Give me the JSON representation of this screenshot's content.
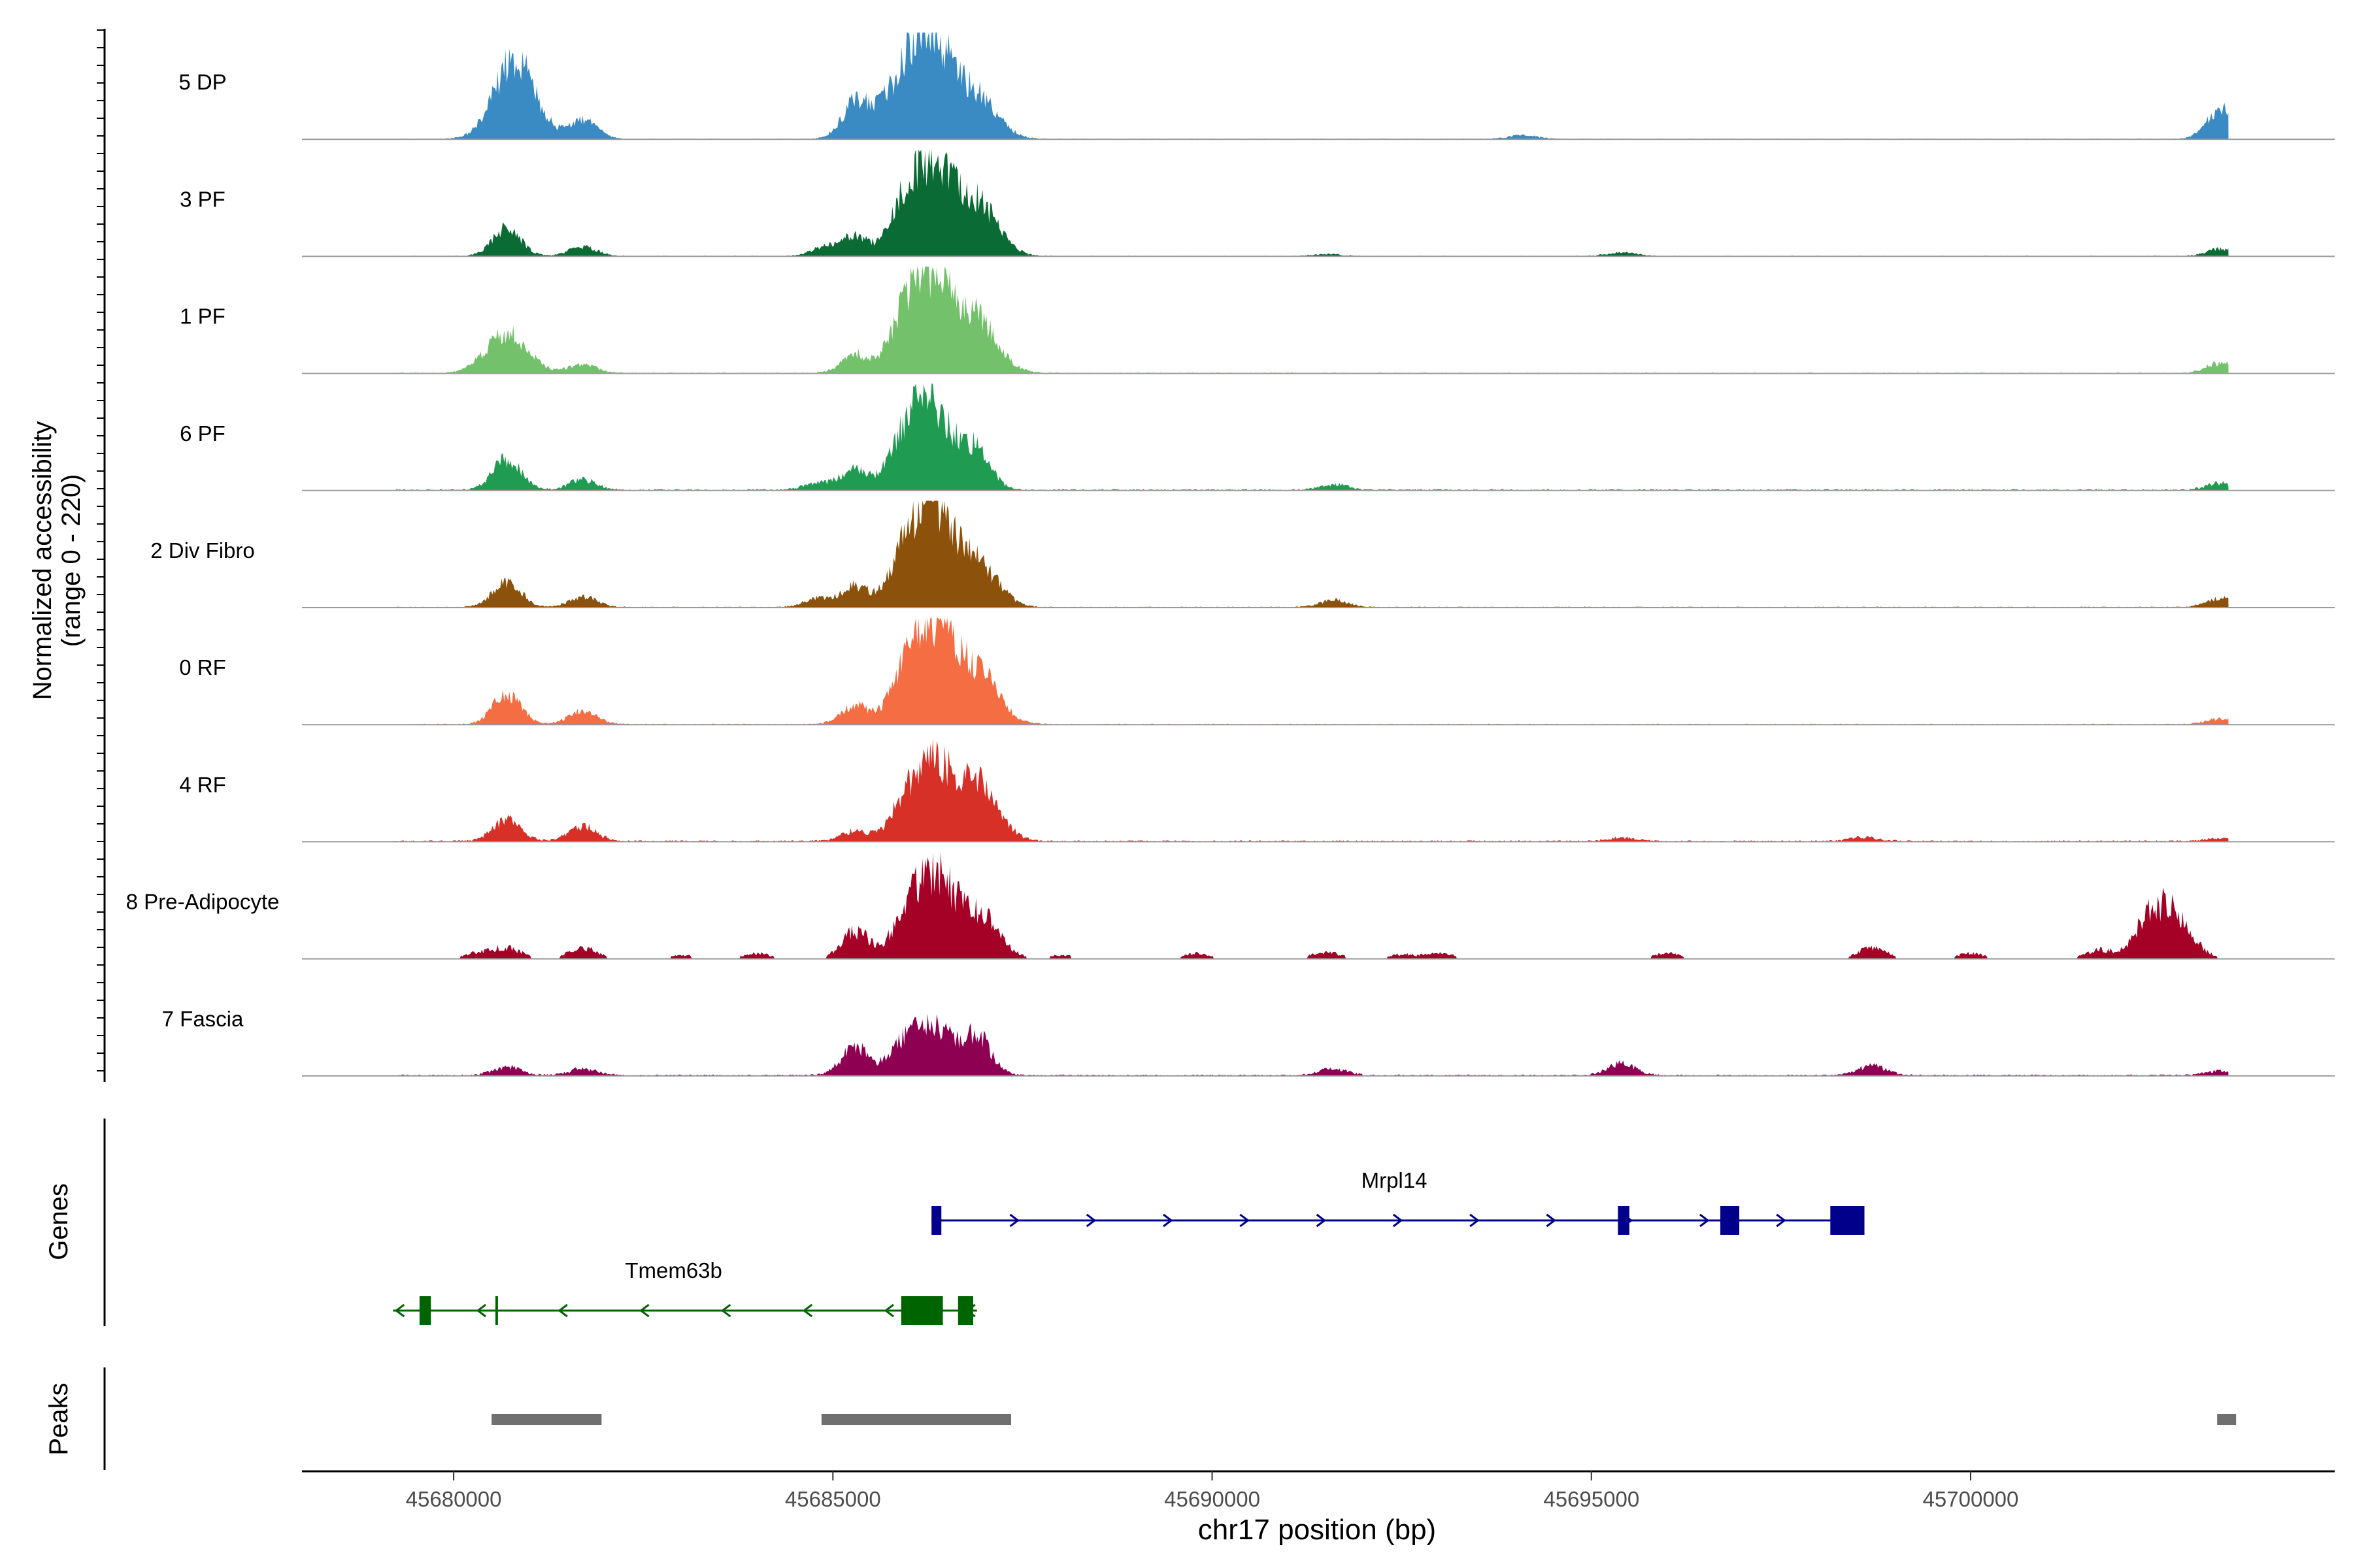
{
  "chart_data": {
    "type": "area",
    "title": "",
    "ylabel_line1": "Normalized accessibility",
    "ylabel_line2": "(range 0 - 220)",
    "xlabel": "chr17 position (bp)",
    "xlim": [
      45678000,
      45704800
    ],
    "ylim": [
      0,
      220
    ],
    "x_ticks": [
      45680000,
      45685000,
      45690000,
      45695000,
      45700000
    ],
    "x_tick_labels": [
      "45680000",
      "45685000",
      "45690000",
      "45695000",
      "45700000"
    ],
    "tracks_label": "Genes",
    "peaks_label": "Peaks",
    "series": [
      {
        "name": "5 DP",
        "color": "#3a8bc4",
        "base": 1.5,
        "points": [
          [
            45680800,
            170
          ],
          [
            45681700,
            42
          ],
          [
            45685300,
            75
          ],
          [
            45685900,
            95
          ],
          [
            45686300,
            200
          ],
          [
            45686900,
            88
          ],
          [
            45694100,
            8
          ],
          [
            45703300,
            65
          ]
        ]
      },
      {
        "name": "3 PF",
        "color": "#0b6b35",
        "base": 1.5,
        "points": [
          [
            45680700,
            60
          ],
          [
            45681700,
            20
          ],
          [
            45684900,
            20
          ],
          [
            45685300,
            40
          ],
          [
            45685900,
            70
          ],
          [
            45686300,
            190
          ],
          [
            45686900,
            110
          ],
          [
            45691500,
            4
          ],
          [
            45695400,
            8
          ],
          [
            45703300,
            15
          ]
        ]
      },
      {
        "name": "1 PF",
        "color": "#73c26b",
        "base": 2,
        "points": [
          [
            45680700,
            85
          ],
          [
            45681700,
            18
          ],
          [
            45685300,
            40
          ],
          [
            45685900,
            80
          ],
          [
            45686300,
            200
          ],
          [
            45686900,
            110
          ],
          [
            45703300,
            22
          ]
        ]
      },
      {
        "name": "6 PF",
        "color": "#1f9b52",
        "base": 3,
        "points": [
          [
            45680700,
            65
          ],
          [
            45681700,
            22
          ],
          [
            45684800,
            14
          ],
          [
            45685300,
            45
          ],
          [
            45685900,
            75
          ],
          [
            45686300,
            185
          ],
          [
            45686900,
            80
          ],
          [
            45691600,
            12
          ],
          [
            45703300,
            15
          ]
        ]
      },
      {
        "name": "2 Div Fibro",
        "color": "#8c510a",
        "base": 2,
        "points": [
          [
            45680700,
            55
          ],
          [
            45681700,
            22
          ],
          [
            45684800,
            18
          ],
          [
            45685300,
            45
          ],
          [
            45685900,
            70
          ],
          [
            45686300,
            215
          ],
          [
            45686900,
            90
          ],
          [
            45691600,
            15
          ],
          [
            45703300,
            20
          ]
        ]
      },
      {
        "name": "0 RF",
        "color": "#f46d43",
        "base": 2,
        "points": [
          [
            45680700,
            65
          ],
          [
            45681700,
            28
          ],
          [
            45685300,
            40
          ],
          [
            45685900,
            60
          ],
          [
            45686300,
            210
          ],
          [
            45686900,
            110
          ],
          [
            45703300,
            12
          ]
        ]
      },
      {
        "name": "4 RF",
        "color": "#d73027",
        "base": 3,
        "points": [
          [
            45680700,
            45
          ],
          [
            45681700,
            32
          ],
          [
            45685300,
            22
          ],
          [
            45685900,
            45
          ],
          [
            45686300,
            160
          ],
          [
            45686900,
            120
          ],
          [
            45695400,
            8
          ],
          [
            45698600,
            8
          ],
          [
            45703300,
            6
          ]
        ]
      },
      {
        "name": "8 Pre-Adipocyte",
        "color": "#a50026",
        "base": 0,
        "points": [
          [
            45680300,
            12
          ],
          [
            45680700,
            25
          ],
          [
            45681700,
            25
          ],
          [
            45683000,
            8
          ],
          [
            45684000,
            12
          ],
          [
            45685300,
            60
          ],
          [
            45685900,
            40
          ],
          [
            45686300,
            190
          ],
          [
            45686900,
            100
          ],
          [
            45688000,
            8
          ],
          [
            45689800,
            12
          ],
          [
            45691500,
            15
          ],
          [
            45692500,
            10
          ],
          [
            45693000,
            12
          ],
          [
            45696000,
            12
          ],
          [
            45698700,
            25
          ],
          [
            45700000,
            12
          ],
          [
            45701700,
            20
          ],
          [
            45702300,
            35
          ],
          [
            45702600,
            110
          ]
        ]
      },
      {
        "name": "7 Fascia",
        "color": "#8e0152",
        "base": 3,
        "points": [
          [
            45680700,
            18
          ],
          [
            45681700,
            14
          ],
          [
            45685300,
            60
          ],
          [
            45685900,
            40
          ],
          [
            45686300,
            110
          ],
          [
            45686900,
            80
          ],
          [
            45691600,
            14
          ],
          [
            45695400,
            25
          ],
          [
            45698700,
            20
          ],
          [
            45703300,
            10
          ]
        ]
      }
    ],
    "genes": [
      {
        "name": "Mrpl14",
        "strand": "+",
        "color": "#00008b",
        "start": 45686300,
        "end": 45698600,
        "exons": [
          [
            45686300,
            45686430
          ],
          [
            45695350,
            45695500
          ],
          [
            45696700,
            45696950
          ],
          [
            45698150,
            45698600
          ]
        ]
      },
      {
        "name": "Tmem63b",
        "strand": "-",
        "color": "#006400",
        "start": 45679200,
        "end": 45686900,
        "exons": [
          [
            45679550,
            45679700
          ],
          [
            45680550,
            45680580
          ],
          [
            45685900,
            45686450
          ],
          [
            45686650,
            45686850
          ]
        ]
      }
    ],
    "peaks": [
      [
        45680500,
        45681950
      ],
      [
        45684850,
        45687350
      ],
      [
        45703250,
        45703500
      ]
    ]
  }
}
